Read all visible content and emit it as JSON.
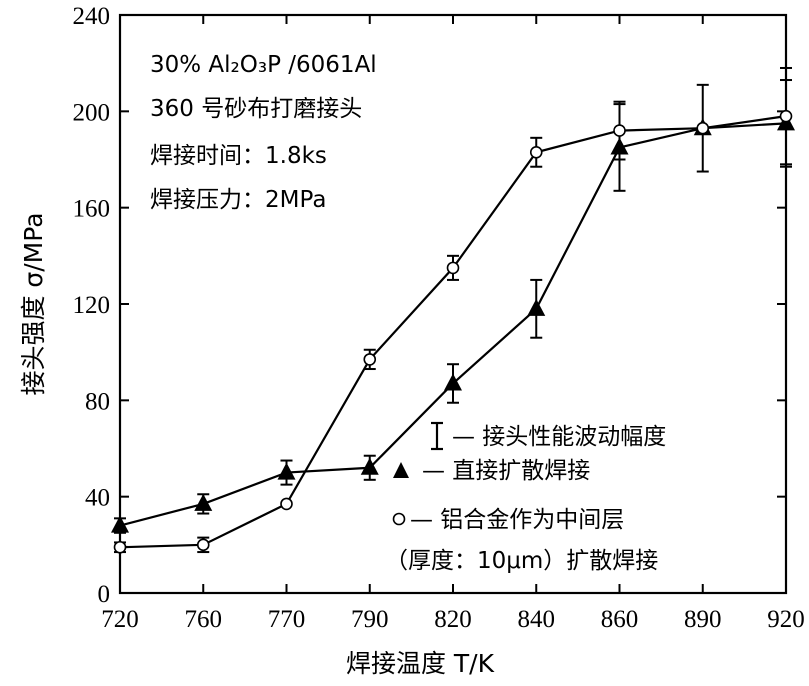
{
  "chart_data": {
    "type": "line",
    "title": "",
    "xlabel": "焊接温度 T/K",
    "ylabel": "接头强度 σ/MPa",
    "categories": [
      "720",
      "760",
      "770",
      "790",
      "820",
      "840",
      "860",
      "890",
      "920"
    ],
    "ylim": [
      0,
      240
    ],
    "yticks": [
      0,
      40,
      80,
      120,
      160,
      200,
      240
    ],
    "grid": false,
    "legend_position": "bottom-right",
    "annotations": [
      "30% Al₂O₃P /6061Al",
      "360 号砂布打磨接头",
      "焊接时间：1.8ks",
      "焊接压力：2MPa"
    ],
    "legend": {
      "error_bar_label": "— 接头性能波动幅度",
      "triangle_label": "— 直接扩散焊接",
      "circle_label": "— 铝合金作为中间层",
      "circle_label_2": "（厚度：10μm）扩散焊接"
    },
    "series": [
      {
        "marker": "triangle",
        "values": [
          28,
          37,
          50,
          52,
          87,
          118,
          185,
          193,
          195
        ],
        "errors": [
          3,
          4,
          5,
          5,
          8,
          12,
          18,
          18,
          18
        ]
      },
      {
        "marker": "circle",
        "values": [
          19,
          20,
          37,
          97,
          135,
          183,
          192,
          193,
          198
        ],
        "errors": [
          2,
          3,
          0,
          4,
          5,
          6,
          12,
          0,
          20
        ]
      }
    ]
  }
}
